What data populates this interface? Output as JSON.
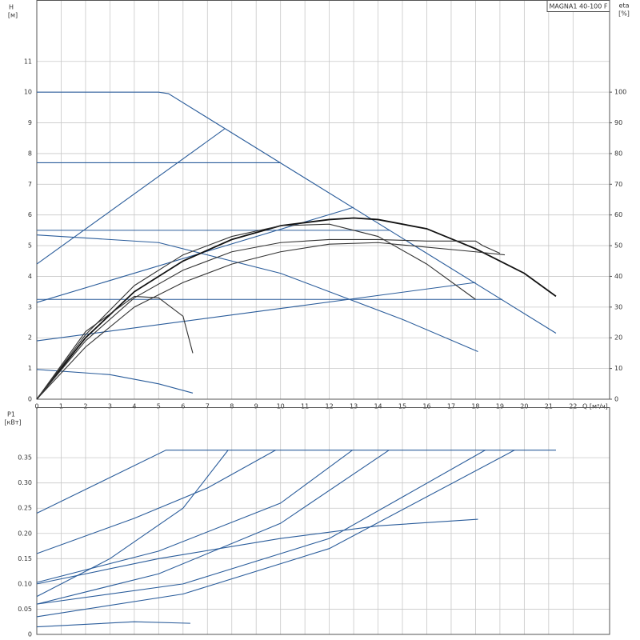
{
  "chart_data": [
    {
      "type": "line",
      "title": "MAGNA1 40-100 F",
      "ylabel": "H",
      "yunit": "[м]",
      "y2label": "eta",
      "y2unit": "[%]",
      "xlabel": "Q [м³/ч]",
      "xlim": [
        0,
        23.5
      ],
      "ylim": [
        0,
        13
      ],
      "y2lim": [
        0,
        130
      ],
      "grid": true,
      "xticks": [
        0,
        1,
        2,
        3,
        4,
        5,
        6,
        7,
        8,
        9,
        10,
        11,
        12,
        13,
        14,
        15,
        16,
        17,
        18,
        19,
        20,
        21,
        22
      ],
      "yticks": [
        0,
        1,
        2,
        3,
        4,
        5,
        6,
        7,
        8,
        9,
        10,
        11
      ],
      "y2ticks": [
        0,
        10,
        20,
        30,
        40,
        50,
        60,
        70,
        80,
        90,
        100
      ],
      "series": [
        {
          "color": "#2b5d9b",
          "x": [
            0,
            5,
            5.4,
            21.3
          ],
          "values": [
            10,
            10,
            9.95,
            2.15
          ]
        },
        {
          "color": "#2b5d9b",
          "x": [
            0,
            7.7
          ],
          "values": [
            4.4,
            8.8
          ]
        },
        {
          "color": "#2b5d9b",
          "x": [
            0,
            13
          ],
          "values": [
            3.15,
            6.25
          ]
        },
        {
          "color": "#2b5d9b",
          "x": [
            0,
            18
          ],
          "values": [
            1.9,
            3.8
          ]
        },
        {
          "color": "#2b5d9b",
          "x": [
            0,
            10
          ],
          "values": [
            7.7,
            7.7
          ]
        },
        {
          "color": "#2b5d9b",
          "x": [
            0,
            14.5
          ],
          "values": [
            5.5,
            5.5
          ]
        },
        {
          "color": "#2b5d9b",
          "x": [
            0,
            19.1
          ],
          "values": [
            3.25,
            3.25
          ]
        },
        {
          "color": "#2b5d9b",
          "x": [
            0,
            5,
            10,
            15,
            18.1
          ],
          "values": [
            5.35,
            5.1,
            4.1,
            2.6,
            1.55
          ]
        },
        {
          "color": "#2b5d9b",
          "x": [
            0,
            3,
            5,
            6.4
          ],
          "values": [
            0.97,
            0.8,
            0.5,
            0.2
          ]
        },
        {
          "color": "#111",
          "axis": "y2",
          "x": [
            0,
            2,
            4,
            6,
            8,
            10,
            12,
            13,
            14,
            16,
            18,
            20,
            21.3
          ],
          "values": [
            0,
            20,
            35,
            45,
            52,
            56.5,
            58.5,
            59,
            58.5,
            55.5,
            49,
            41,
            33.5
          ]
        },
        {
          "color": "#333",
          "axis": "y2",
          "x": [
            0,
            2,
            4,
            6,
            8,
            10,
            12,
            14,
            16,
            18
          ],
          "values": [
            0,
            21,
            37,
            47,
            53,
            56.5,
            57,
            53,
            44,
            32.5
          ]
        },
        {
          "color": "#333",
          "axis": "y2",
          "x": [
            0,
            2,
            4,
            6,
            8,
            10,
            12,
            14,
            16,
            18,
            18.3,
            19
          ],
          "values": [
            0,
            19,
            33,
            42,
            48,
            51,
            52,
            52,
            51.5,
            51.5,
            50,
            47.5
          ]
        },
        {
          "color": "#333",
          "axis": "y2",
          "x": [
            0,
            2,
            4,
            6,
            8,
            10,
            12,
            14,
            18,
            19.2
          ],
          "values": [
            0,
            17,
            30,
            38,
            44,
            48,
            50.5,
            51,
            48,
            47
          ]
        },
        {
          "color": "#333",
          "axis": "y2",
          "x": [
            0,
            2,
            4,
            5,
            6,
            6.4
          ],
          "values": [
            0,
            22,
            33.5,
            33,
            27,
            15
          ]
        }
      ]
    },
    {
      "type": "line",
      "ylabel": "P1",
      "yunit": "[кВт]",
      "xlim": [
        0,
        23.5
      ],
      "ylim": [
        0,
        0.45
      ],
      "grid": true,
      "yticks": [
        0,
        0.05,
        {
          "value": 0.1,
          "label": "0.10"
        },
        0.15,
        {
          "value": 0.2,
          "label": "0.20"
        },
        0.25,
        {
          "value": 0.3,
          "label": "0.30"
        },
        0.35
      ],
      "series": [
        {
          "color": "#2b5d9b",
          "x": [
            0,
            5.3,
            21.3
          ],
          "values": [
            0.24,
            0.365,
            0.365
          ]
        },
        {
          "color": "#2b5d9b",
          "x": [
            0,
            4,
            7,
            9.8
          ],
          "values": [
            0.16,
            0.23,
            0.29,
            0.365
          ]
        },
        {
          "color": "#2b5d9b",
          "x": [
            0,
            3,
            6,
            7.85
          ],
          "values": [
            0.075,
            0.15,
            0.25,
            0.365
          ]
        },
        {
          "color": "#2b5d9b",
          "x": [
            0,
            5,
            10,
            12.95
          ],
          "values": [
            0.103,
            0.165,
            0.26,
            0.365
          ]
        },
        {
          "color": "#2b5d9b",
          "x": [
            0,
            5,
            10,
            14.45
          ],
          "values": [
            0.06,
            0.12,
            0.22,
            0.365
          ]
        },
        {
          "color": "#2b5d9b",
          "x": [
            0,
            6,
            12,
            18.4
          ],
          "values": [
            0.06,
            0.1,
            0.19,
            0.365
          ]
        },
        {
          "color": "#2b5d9b",
          "x": [
            0,
            6,
            12,
            19.6
          ],
          "values": [
            0.035,
            0.08,
            0.17,
            0.365
          ]
        },
        {
          "color": "#2b5d9b",
          "x": [
            0,
            5,
            10,
            14,
            18.1
          ],
          "values": [
            0.1,
            0.15,
            0.19,
            0.215,
            0.228
          ]
        },
        {
          "color": "#2b5d9b",
          "x": [
            0,
            4,
            6.3
          ],
          "values": [
            0.015,
            0.025,
            0.022
          ]
        }
      ]
    }
  ]
}
